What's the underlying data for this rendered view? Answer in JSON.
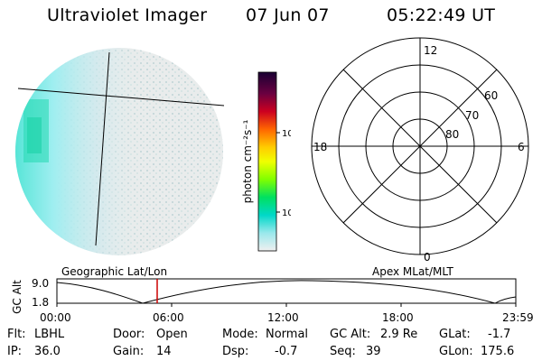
{
  "header": {
    "instrument": "Ultraviolet Imager",
    "date": "07 Jun 07",
    "time": "05:22:49 UT"
  },
  "colorbar": {
    "unit_label": "photon cm⁻²s⁻¹",
    "ticks": [
      "100",
      "10"
    ]
  },
  "polar": {
    "mlt_labels": {
      "top": "12",
      "left": "18",
      "right": "6",
      "bottom": "0"
    },
    "lat_labels": [
      "60",
      "70",
      "80"
    ]
  },
  "timeline": {
    "left_title": "Geographic Lat/Lon",
    "right_title": "Apex MLat/MLT",
    "axis_label": "GC Alt",
    "y_ticks": [
      "9.0",
      "1.8"
    ],
    "x_ticks": [
      "00:00",
      "06:00",
      "12:00",
      "18:00",
      "23:59"
    ],
    "marker_color": "#cc0000"
  },
  "info": {
    "flt": {
      "label": "Flt:",
      "value": "LBHL"
    },
    "ip": {
      "label": "IP:",
      "value": "36.0"
    },
    "door": {
      "label": "Door:",
      "value": "Open"
    },
    "gain": {
      "label": "Gain:",
      "value": "14"
    },
    "mode": {
      "label": "Mode:",
      "value": "Normal"
    },
    "dsp": {
      "label": "Dsp:",
      "value": "-0.7"
    },
    "gcalt": {
      "label": "GC Alt:",
      "value": "2.9 Re"
    },
    "seq": {
      "label": "Seq:",
      "value": "39"
    },
    "glat": {
      "label": "GLat:",
      "value": "-1.7"
    },
    "glon": {
      "label": "GLon:",
      "value": "175.6"
    }
  }
}
